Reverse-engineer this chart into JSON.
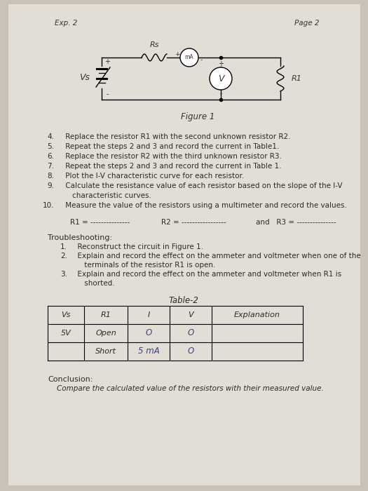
{
  "bg_color": "#c8c2b8",
  "page_bg": "#e2ddd5",
  "exp_label": "Exp. 2",
  "page_label": "Page 2",
  "figure_label": "Figure 1",
  "steps": [
    [
      "4.",
      " Replace the resistor R1 with the second unknown resistor R2."
    ],
    [
      "5.",
      " Repeat the steps 2 and 3 and record the current in Table1."
    ],
    [
      "6.",
      " Replace the resistor R2 with the third unknown resistor R3."
    ],
    [
      "7.",
      " Repeat the steps 2 and 3 and record the current in Table 1."
    ],
    [
      "8.",
      " Plot the I-V characteristic curve for each resistor."
    ],
    [
      "9.",
      " Calculate the resistance value of each resistor based on the slope of the I-V"
    ],
    [
      "",
      "    characteristic curves."
    ],
    [
      "10.",
      " Measure the value of the resistors using a multimeter and record the values."
    ]
  ],
  "r1_line": "R1 = ---------------      R2 = -----------------      and   R3 = ---------------",
  "troubleshooting_title": "Troubleshooting:",
  "troubleshooting_items": [
    [
      "1.",
      "  Reconstruct the circuit in Figure 1."
    ],
    [
      "2.",
      "  Explain and record the effect on the ammeter and voltmeter when one of the"
    ],
    [
      "",
      "    terminals of the resistor R1 is open."
    ],
    [
      "3.",
      "  Explain and record the effect on the ammeter and voltmeter when R1 is"
    ],
    [
      "",
      "    shorted."
    ]
  ],
  "table_title": "Table-2",
  "table_headers": [
    "Vs",
    "R1",
    "I",
    "V",
    "Explanation"
  ],
  "table_row1": [
    "5V",
    "Open",
    "O",
    "O",
    ""
  ],
  "table_row2": [
    "",
    "Short",
    "5 mA",
    "O",
    ""
  ],
  "conclusion_title": "Conclusion:",
  "conclusion_text": "    Compare the calculated value of the resistors with their measured value."
}
